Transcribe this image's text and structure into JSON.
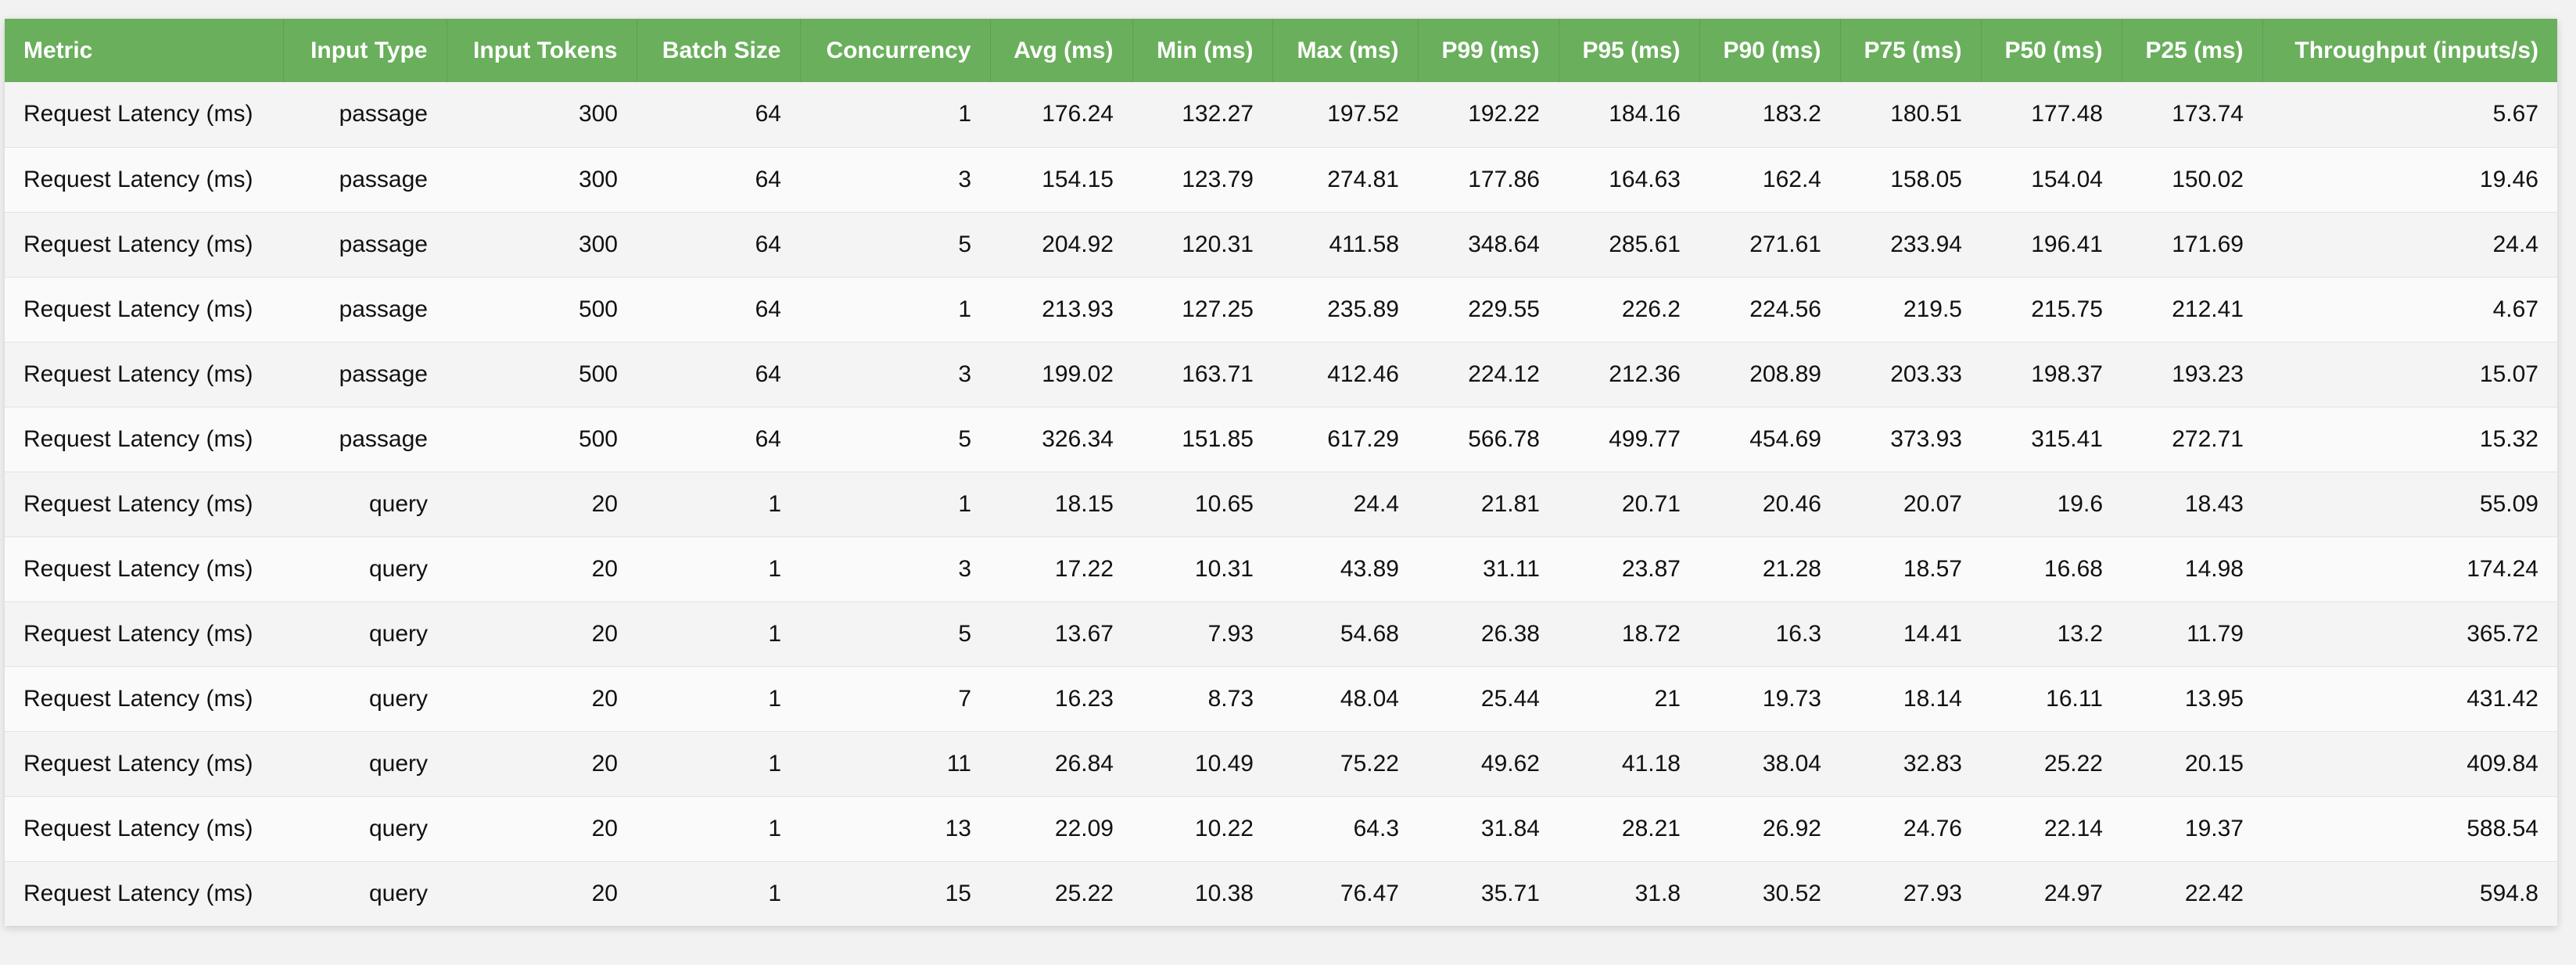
{
  "table": {
    "columns": [
      "Metric",
      "Input Type",
      "Input Tokens",
      "Batch Size",
      "Concurrency",
      "Avg (ms)",
      "Min (ms)",
      "Max (ms)",
      "P99 (ms)",
      "P95 (ms)",
      "P90 (ms)",
      "P75 (ms)",
      "P50 (ms)",
      "P25 (ms)",
      "Throughput (inputs/s)"
    ],
    "rows": [
      [
        "Request Latency (ms)",
        "passage",
        "300",
        "64",
        "1",
        "176.24",
        "132.27",
        "197.52",
        "192.22",
        "184.16",
        "183.2",
        "180.51",
        "177.48",
        "173.74",
        "5.67"
      ],
      [
        "Request Latency (ms)",
        "passage",
        "300",
        "64",
        "3",
        "154.15",
        "123.79",
        "274.81",
        "177.86",
        "164.63",
        "162.4",
        "158.05",
        "154.04",
        "150.02",
        "19.46"
      ],
      [
        "Request Latency (ms)",
        "passage",
        "300",
        "64",
        "5",
        "204.92",
        "120.31",
        "411.58",
        "348.64",
        "285.61",
        "271.61",
        "233.94",
        "196.41",
        "171.69",
        "24.4"
      ],
      [
        "Request Latency (ms)",
        "passage",
        "500",
        "64",
        "1",
        "213.93",
        "127.25",
        "235.89",
        "229.55",
        "226.2",
        "224.56",
        "219.5",
        "215.75",
        "212.41",
        "4.67"
      ],
      [
        "Request Latency (ms)",
        "passage",
        "500",
        "64",
        "3",
        "199.02",
        "163.71",
        "412.46",
        "224.12",
        "212.36",
        "208.89",
        "203.33",
        "198.37",
        "193.23",
        "15.07"
      ],
      [
        "Request Latency (ms)",
        "passage",
        "500",
        "64",
        "5",
        "326.34",
        "151.85",
        "617.29",
        "566.78",
        "499.77",
        "454.69",
        "373.93",
        "315.41",
        "272.71",
        "15.32"
      ],
      [
        "Request Latency (ms)",
        "query",
        "20",
        "1",
        "1",
        "18.15",
        "10.65",
        "24.4",
        "21.81",
        "20.71",
        "20.46",
        "20.07",
        "19.6",
        "18.43",
        "55.09"
      ],
      [
        "Request Latency (ms)",
        "query",
        "20",
        "1",
        "3",
        "17.22",
        "10.31",
        "43.89",
        "31.11",
        "23.87",
        "21.28",
        "18.57",
        "16.68",
        "14.98",
        "174.24"
      ],
      [
        "Request Latency (ms)",
        "query",
        "20",
        "1",
        "5",
        "13.67",
        "7.93",
        "54.68",
        "26.38",
        "18.72",
        "16.3",
        "14.41",
        "13.2",
        "11.79",
        "365.72"
      ],
      [
        "Request Latency (ms)",
        "query",
        "20",
        "1",
        "7",
        "16.23",
        "8.73",
        "48.04",
        "25.44",
        "21",
        "19.73",
        "18.14",
        "16.11",
        "13.95",
        "431.42"
      ],
      [
        "Request Latency (ms)",
        "query",
        "20",
        "1",
        "11",
        "26.84",
        "10.49",
        "75.22",
        "49.62",
        "41.18",
        "38.04",
        "32.83",
        "25.22",
        "20.15",
        "409.84"
      ],
      [
        "Request Latency (ms)",
        "query",
        "20",
        "1",
        "13",
        "22.09",
        "10.22",
        "64.3",
        "31.84",
        "28.21",
        "26.92",
        "24.76",
        "22.14",
        "19.37",
        "588.54"
      ],
      [
        "Request Latency (ms)",
        "query",
        "20",
        "1",
        "15",
        "25.22",
        "10.38",
        "76.47",
        "35.71",
        "31.8",
        "30.52",
        "27.93",
        "24.97",
        "22.42",
        "594.8"
      ]
    ]
  },
  "colors": {
    "header_bg": "#6aaf5c",
    "header_text": "#ffffff",
    "row_odd": "#f4f4f4",
    "row_even": "#fafafa"
  }
}
